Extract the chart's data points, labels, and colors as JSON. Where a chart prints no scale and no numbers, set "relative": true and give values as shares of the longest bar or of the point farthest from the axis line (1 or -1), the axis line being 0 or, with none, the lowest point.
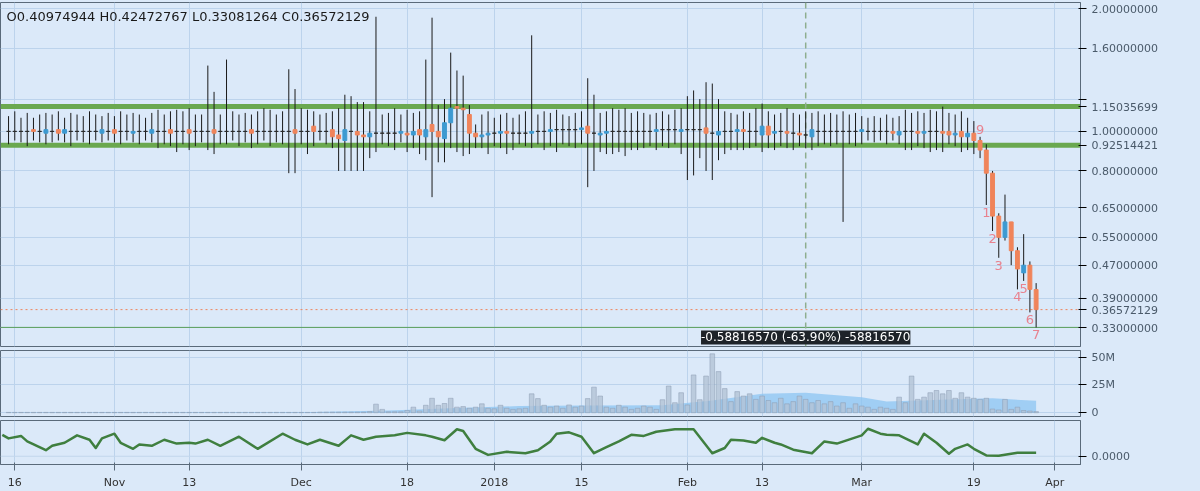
{
  "chart_data": [
    {
      "type": "candlestick",
      "annotations": [
        "O0.40974944 H0.42472767 L0.33081264 C0.36572129",
        {
          "text": "9",
          "x": "2018-03-20",
          "y": 0.97
        },
        {
          "text": "1",
          "x": "2018-03-21",
          "y": 0.66
        },
        {
          "text": "2",
          "x": "2018-03-22",
          "y": 0.57
        },
        {
          "text": "3",
          "x": "2018-03-23",
          "y": 0.49
        },
        {
          "text": "4",
          "x": "2018-03-26",
          "y": 0.41
        },
        {
          "text": "5",
          "x": "2018-03-27",
          "y": 0.43
        },
        {
          "text": "6",
          "x": "2018-03-28",
          "y": 0.36
        },
        {
          "text": "7",
          "x": "2018-03-29",
          "y": 0.33081264
        },
        {
          "text": "-0.58816570 (-63.90%) -58816570",
          "x": "2018-02-20",
          "y": 0.3308
        }
      ],
      "x": [
        "2017-10-15",
        "2017-10-16",
        "2017-10-17",
        "2017-10-18",
        "2017-10-19",
        "2017-10-20",
        "2017-10-21",
        "2017-10-22",
        "2017-10-23",
        "2017-10-24",
        "2017-10-25",
        "2017-10-26",
        "2017-10-27",
        "2017-10-28",
        "2017-10-29",
        "2017-10-30",
        "2017-10-31",
        "2017-11-01",
        "2017-11-02",
        "2017-11-03",
        "2017-11-04",
        "2017-11-05",
        "2017-11-06",
        "2017-11-07",
        "2017-11-08",
        "2017-11-09",
        "2017-11-10",
        "2017-11-11",
        "2017-11-12",
        "2017-11-13",
        "2017-11-14",
        "2017-11-15",
        "2017-11-16",
        "2017-11-17",
        "2017-11-18",
        "2017-11-19",
        "2017-11-20",
        "2017-11-21",
        "2017-11-22",
        "2017-11-23",
        "2017-11-24",
        "2017-11-25",
        "2017-11-26",
        "2017-11-27",
        "2017-11-28",
        "2017-11-29",
        "2017-11-30",
        "2017-12-01",
        "2017-12-02",
        "2017-12-03",
        "2017-12-04",
        "2017-12-05",
        "2017-12-06",
        "2017-12-07",
        "2017-12-08",
        "2017-12-09",
        "2017-12-10",
        "2017-12-11",
        "2017-12-12",
        "2017-12-13",
        "2017-12-14",
        "2017-12-15",
        "2017-12-16",
        "2017-12-17",
        "2017-12-18",
        "2017-12-19",
        "2017-12-20",
        "2017-12-21",
        "2017-12-22",
        "2017-12-23",
        "2017-12-24",
        "2017-12-25",
        "2017-12-26",
        "2017-12-27",
        "2017-12-28",
        "2017-12-29",
        "2017-12-30",
        "2017-12-31",
        "2018-01-01",
        "2018-01-02",
        "2018-01-03",
        "2018-01-04",
        "2018-01-05",
        "2018-01-06",
        "2018-01-07",
        "2018-01-08",
        "2018-01-09",
        "2018-01-10",
        "2018-01-11",
        "2018-01-12",
        "2018-01-13",
        "2018-01-14",
        "2018-01-15",
        "2018-01-16",
        "2018-01-17",
        "2018-01-18",
        "2018-01-19",
        "2018-01-20",
        "2018-01-21",
        "2018-01-22",
        "2018-01-23",
        "2018-01-24",
        "2018-01-25",
        "2018-01-26",
        "2018-01-27",
        "2018-01-28",
        "2018-01-29",
        "2018-01-30",
        "2018-01-31",
        "2018-02-01",
        "2018-02-02",
        "2018-02-03",
        "2018-02-04",
        "2018-02-05",
        "2018-02-06",
        "2018-02-07",
        "2018-02-08",
        "2018-02-09",
        "2018-02-10",
        "2018-02-11",
        "2018-02-12",
        "2018-02-13",
        "2018-02-14",
        "2018-02-15",
        "2018-02-16",
        "2018-02-17",
        "2018-02-18",
        "2018-02-19",
        "2018-02-20",
        "2018-02-21",
        "2018-02-22",
        "2018-02-23",
        "2018-02-24",
        "2018-02-25",
        "2018-02-26",
        "2018-02-27",
        "2018-02-28",
        "2018-03-01",
        "2018-03-02",
        "2018-03-03",
        "2018-03-04",
        "2018-03-05",
        "2018-03-06",
        "2018-03-07",
        "2018-03-08",
        "2018-03-09",
        "2018-03-10",
        "2018-03-11",
        "2018-03-12",
        "2018-03-13",
        "2018-03-14",
        "2018-03-15",
        "2018-03-16",
        "2018-03-17",
        "2018-03-18",
        "2018-03-19",
        "2018-03-20",
        "2018-03-21",
        "2018-03-22",
        "2018-03-23",
        "2018-03-24",
        "2018-03-25",
        "2018-03-26",
        "2018-03-27",
        "2018-03-28",
        "2018-03-29"
      ],
      "ohlc": [
        [
          1.0,
          1.09,
          0.93,
          1.0
        ],
        [
          1.0,
          1.12,
          0.95,
          1.0
        ],
        [
          1.0,
          1.08,
          0.94,
          1.0
        ],
        [
          1.0,
          1.11,
          0.92,
          1.0
        ],
        [
          1.01,
          1.08,
          0.95,
          1.0
        ],
        [
          1.0,
          1.1,
          0.94,
          1.0
        ],
        [
          0.99,
          1.11,
          0.93,
          1.01
        ],
        [
          1.0,
          1.1,
          0.94,
          1.0
        ],
        [
          1.01,
          1.12,
          0.95,
          0.99
        ],
        [
          0.99,
          1.08,
          0.94,
          1.01
        ],
        [
          1.0,
          1.11,
          0.92,
          1.0
        ],
        [
          1.0,
          1.1,
          0.95,
          1.0
        ],
        [
          1.0,
          1.09,
          0.94,
          1.0
        ],
        [
          1.0,
          1.12,
          0.93,
          1.0
        ],
        [
          1.0,
          1.1,
          0.95,
          1.0
        ],
        [
          0.99,
          1.09,
          0.94,
          1.01
        ],
        [
          1.0,
          1.11,
          0.95,
          1.0
        ],
        [
          1.01,
          1.09,
          0.94,
          0.99
        ],
        [
          1.0,
          1.12,
          0.93,
          1.0
        ],
        [
          1.0,
          1.1,
          0.95,
          1.0
        ],
        [
          0.99,
          1.11,
          0.94,
          1.0
        ],
        [
          1.0,
          1.1,
          0.93,
          1.0
        ],
        [
          1.0,
          1.08,
          0.95,
          1.0
        ],
        [
          0.99,
          1.11,
          0.94,
          1.01
        ],
        [
          1.0,
          1.13,
          0.91,
          1.0
        ],
        [
          1.0,
          1.1,
          0.93,
          1.0
        ],
        [
          1.01,
          1.12,
          0.92,
          0.99
        ],
        [
          1.0,
          1.13,
          0.89,
          1.0
        ],
        [
          1.0,
          1.12,
          0.93,
          1.0
        ],
        [
          1.01,
          1.14,
          0.9,
          0.99
        ],
        [
          1.0,
          1.1,
          0.92,
          1.0
        ],
        [
          1.0,
          1.1,
          0.94,
          1.0
        ],
        [
          1.0,
          1.45,
          0.9,
          1.0
        ],
        [
          1.01,
          1.25,
          0.88,
          0.99
        ],
        [
          1.0,
          1.1,
          0.93,
          1.0
        ],
        [
          1.0,
          1.5,
          0.93,
          1.0
        ],
        [
          1.0,
          1.12,
          0.95,
          1.0
        ],
        [
          1.0,
          1.1,
          0.92,
          1.0
        ],
        [
          1.0,
          1.11,
          0.94,
          1.0
        ],
        [
          1.01,
          1.1,
          0.91,
          0.99
        ],
        [
          1.0,
          1.12,
          0.93,
          1.0
        ],
        [
          1.0,
          1.14,
          0.95,
          1.0
        ],
        [
          1.0,
          1.13,
          0.92,
          1.0
        ],
        [
          1.0,
          1.1,
          0.94,
          1.0
        ],
        [
          1.0,
          1.12,
          0.93,
          1.0
        ],
        [
          1.0,
          1.42,
          0.79,
          1.0
        ],
        [
          1.01,
          1.27,
          0.79,
          0.99
        ],
        [
          1.0,
          1.14,
          0.93,
          1.0
        ],
        [
          1.0,
          1.13,
          0.88,
          1.0
        ],
        [
          1.03,
          1.12,
          0.92,
          1.0
        ],
        [
          1.0,
          1.1,
          0.95,
          1.0
        ],
        [
          1.0,
          1.11,
          0.93,
          1.0
        ],
        [
          1.01,
          1.12,
          0.91,
          0.97
        ],
        [
          0.98,
          1.14,
          0.8,
          0.96
        ],
        [
          0.95,
          1.23,
          0.8,
          1.01
        ],
        [
          1.0,
          1.22,
          0.8,
          1.0
        ],
        [
          1.0,
          1.18,
          0.8,
          0.98
        ],
        [
          0.98,
          1.18,
          0.8,
          0.97
        ],
        [
          0.97,
          1.12,
          0.86,
          0.99
        ],
        [
          0.99,
          1.91,
          0.89,
          0.99
        ],
        [
          0.99,
          1.1,
          0.93,
          0.99
        ],
        [
          0.99,
          1.11,
          0.92,
          0.99
        ],
        [
          0.99,
          1.14,
          0.9,
          0.99
        ],
        [
          0.99,
          1.1,
          0.94,
          1.0
        ],
        [
          0.99,
          1.13,
          0.89,
          0.98
        ],
        [
          0.98,
          1.11,
          0.91,
          1.0
        ],
        [
          1.01,
          1.12,
          0.88,
          0.98
        ],
        [
          0.97,
          1.5,
          0.85,
          1.01
        ],
        [
          1.04,
          1.9,
          0.69,
          1.0
        ],
        [
          1.0,
          1.16,
          0.84,
          0.97
        ],
        [
          0.96,
          1.2,
          0.84,
          1.05
        ],
        [
          1.05,
          1.56,
          0.91,
          1.14
        ],
        [
          1.15,
          1.41,
          0.89,
          1.14
        ],
        [
          1.14,
          1.37,
          0.87,
          1.13
        ],
        [
          1.1,
          1.16,
          0.88,
          0.99
        ],
        [
          0.99,
          1.04,
          0.91,
          0.97
        ],
        [
          0.97,
          1.1,
          0.91,
          0.98
        ],
        [
          0.98,
          1.12,
          0.88,
          0.99
        ],
        [
          0.99,
          1.08,
          0.92,
          0.99
        ],
        [
          0.99,
          1.1,
          0.91,
          1.0
        ],
        [
          1.0,
          1.11,
          0.88,
          0.99
        ],
        [
          0.99,
          1.08,
          0.9,
          0.99
        ],
        [
          0.99,
          1.1,
          0.93,
          0.99
        ],
        [
          0.99,
          1.12,
          0.92,
          0.99
        ],
        [
          0.99,
          1.72,
          0.91,
          1.0
        ],
        [
          1.0,
          1.1,
          0.93,
          1.0
        ],
        [
          1.0,
          1.12,
          0.9,
          1.0
        ],
        [
          1.0,
          1.11,
          0.92,
          1.01
        ],
        [
          1.01,
          1.13,
          0.89,
          1.01
        ],
        [
          1.01,
          1.1,
          0.93,
          1.01
        ],
        [
          1.01,
          1.09,
          0.92,
          1.01
        ],
        [
          1.01,
          1.11,
          0.91,
          1.01
        ],
        [
          1.01,
          1.12,
          0.93,
          1.02
        ],
        [
          1.03,
          1.35,
          0.73,
          0.99
        ],
        [
          0.99,
          1.23,
          0.8,
          0.99
        ],
        [
          0.98,
          1.11,
          0.89,
          0.99
        ],
        [
          0.99,
          1.12,
          0.88,
          1.0
        ],
        [
          1.0,
          1.14,
          0.88,
          1.0
        ],
        [
          1.0,
          1.13,
          0.89,
          1.0
        ],
        [
          1.0,
          1.14,
          0.87,
          1.0
        ],
        [
          1.0,
          1.11,
          0.9,
          1.0
        ],
        [
          1.0,
          1.12,
          0.9,
          1.0
        ],
        [
          1.0,
          1.11,
          0.91,
          1.0
        ],
        [
          1.0,
          1.1,
          0.92,
          1.0
        ],
        [
          1.0,
          1.11,
          0.9,
          1.01
        ],
        [
          1.01,
          1.12,
          0.92,
          1.01
        ],
        [
          1.01,
          1.1,
          0.91,
          1.01
        ],
        [
          1.01,
          1.13,
          0.93,
          1.01
        ],
        [
          1.0,
          1.14,
          0.88,
          1.01
        ],
        [
          1.01,
          1.22,
          0.76,
          1.01
        ],
        [
          1.01,
          1.26,
          0.78,
          1.01
        ],
        [
          1.01,
          1.2,
          0.86,
          1.01
        ],
        [
          1.02,
          1.32,
          0.8,
          0.99
        ],
        [
          0.99,
          1.31,
          0.76,
          0.99
        ],
        [
          0.98,
          1.2,
          0.85,
          1.0
        ],
        [
          1.0,
          1.12,
          0.88,
          1.0
        ],
        [
          1.0,
          1.11,
          0.9,
          1.0
        ],
        [
          1.0,
          1.1,
          0.9,
          1.01
        ],
        [
          1.01,
          1.12,
          0.9,
          1.0
        ],
        [
          1.0,
          1.11,
          0.91,
          1.0
        ],
        [
          1.0,
          1.14,
          0.92,
          1.0
        ],
        [
          0.98,
          1.17,
          0.89,
          1.03
        ],
        [
          1.03,
          1.12,
          0.91,
          0.98
        ],
        [
          0.99,
          1.1,
          0.9,
          1.0
        ],
        [
          1.0,
          1.11,
          0.92,
          1.0
        ],
        [
          1.0,
          1.14,
          0.91,
          0.99
        ],
        [
          0.99,
          1.11,
          0.9,
          0.99
        ],
        [
          0.99,
          1.1,
          0.92,
          0.98
        ],
        [
          0.98,
          1.12,
          0.91,
          0.98
        ],
        [
          0.97,
          1.11,
          0.9,
          1.01
        ],
        [
          1.0,
          1.12,
          0.92,
          1.0
        ],
        [
          1.0,
          1.1,
          0.93,
          1.0
        ],
        [
          1.0,
          1.11,
          0.92,
          1.0
        ],
        [
          1.0,
          1.1,
          0.93,
          1.0
        ],
        [
          1.0,
          1.12,
          0.6,
          1.0
        ],
        [
          1.0,
          1.1,
          0.93,
          1.0
        ],
        [
          1.0,
          1.11,
          0.92,
          1.0
        ],
        [
          1.0,
          1.09,
          0.93,
          1.01
        ],
        [
          1.0,
          1.08,
          0.95,
          1.0
        ],
        [
          1.0,
          1.09,
          0.94,
          1.0
        ],
        [
          1.0,
          1.08,
          0.95,
          1.0
        ],
        [
          1.0,
          1.1,
          0.93,
          1.0
        ],
        [
          1.0,
          1.08,
          0.95,
          0.99
        ],
        [
          0.98,
          1.09,
          0.93,
          1.0
        ],
        [
          1.0,
          1.13,
          0.9,
          1.0
        ],
        [
          1.0,
          1.11,
          0.9,
          1.0
        ],
        [
          1.0,
          1.12,
          0.92,
          0.99
        ],
        [
          0.99,
          1.11,
          0.91,
          1.0
        ],
        [
          1.0,
          1.13,
          0.89,
          1.0
        ],
        [
          1.0,
          1.12,
          0.9,
          1.0
        ],
        [
          1.0,
          1.15,
          0.89,
          0.99
        ],
        [
          1.0,
          1.11,
          0.93,
          0.98
        ],
        [
          0.98,
          1.1,
          0.92,
          0.99
        ],
        [
          1.0,
          1.12,
          0.89,
          0.97
        ],
        [
          0.97,
          1.08,
          0.9,
          0.99
        ],
        [
          0.99,
          1.06,
          0.88,
          0.95
        ],
        [
          0.95,
          0.97,
          0.86,
          0.9
        ],
        [
          0.9,
          0.93,
          0.66,
          0.79
        ],
        [
          0.79,
          0.8,
          0.57,
          0.62
        ],
        [
          0.62,
          0.63,
          0.49,
          0.55
        ],
        [
          0.55,
          0.7,
          0.54,
          0.6
        ],
        [
          0.6,
          0.6,
          0.47,
          0.51
        ],
        [
          0.51,
          0.52,
          0.41,
          0.46
        ],
        [
          0.45,
          0.56,
          0.43,
          0.47
        ],
        [
          0.47,
          0.48,
          0.36,
          0.41
        ],
        [
          0.40974944,
          0.42472767,
          0.33081264,
          0.36572129
        ]
      ],
      "colors": [
        "#2b2b2b",
        "#2b2b2b",
        "#2b2b2b",
        "#2b2b2b",
        "#f0845a",
        "#2b2b2b",
        "#3d9ad1",
        "#2b2b2b",
        "#f0845a",
        "#3d9ad1",
        "#2b2b2b",
        "#2b2b2b",
        "#2b2b2b",
        "#2b2b2b",
        "#2b2b2b",
        "#3d9ad1",
        "#2b2b2b",
        "#f0845a",
        "#2b2b2b",
        "#2b2b2b",
        "#3d9ad1",
        "#2b2b2b",
        "#2b2b2b",
        "#3d9ad1",
        "#2b2b2b",
        "#2b2b2b",
        "#f0845a",
        "#2b2b2b",
        "#2b2b2b",
        "#f0845a",
        "#2b2b2b",
        "#2b2b2b",
        "#2b2b2b",
        "#f0845a",
        "#2b2b2b",
        "#2b2b2b",
        "#2b2b2b",
        "#2b2b2b",
        "#2b2b2b",
        "#f0845a",
        "#2b2b2b",
        "#2b2b2b",
        "#2b2b2b",
        "#2b2b2b",
        "#2b2b2b",
        "#2b2b2b",
        "#f0845a",
        "#2b2b2b",
        "#2b2b2b",
        "#f0845a",
        "#2b2b2b",
        "#2b2b2b",
        "#f0845a",
        "#f0845a",
        "#3d9ad1",
        "#2b2b2b",
        "#f0845a",
        "#f0845a",
        "#3d9ad1",
        "#2b2b2b",
        "#2b2b2b",
        "#2b2b2b",
        "#2b2b2b",
        "#3d9ad1",
        "#f0845a",
        "#3d9ad1",
        "#f0845a",
        "#3d9ad1",
        "#f0845a",
        "#f0845a",
        "#3d9ad1",
        "#3d9ad1",
        "#f0845a",
        "#f0845a",
        "#f0845a",
        "#f0845a",
        "#3d9ad1",
        "#3d9ad1",
        "#2b2b2b",
        "#3d9ad1",
        "#f0845a",
        "#2b2b2b",
        "#2b2b2b",
        "#2b2b2b",
        "#3d9ad1",
        "#2b2b2b",
        "#2b2b2b",
        "#3d9ad1",
        "#2b2b2b",
        "#2b2b2b",
        "#2b2b2b",
        "#2b2b2b",
        "#3d9ad1",
        "#f0845a",
        "#2b2b2b",
        "#3d9ad1",
        "#3d9ad1",
        "#2b2b2b",
        "#2b2b2b",
        "#2b2b2b",
        "#2b2b2b",
        "#2b2b2b",
        "#2b2b2b",
        "#2b2b2b",
        "#3d9ad1",
        "#2b2b2b",
        "#2b2b2b",
        "#2b2b2b",
        "#3d9ad1",
        "#2b2b2b",
        "#2b2b2b",
        "#2b2b2b",
        "#f0845a",
        "#2b2b2b",
        "#3d9ad1",
        "#2b2b2b",
        "#2b2b2b",
        "#3d9ad1",
        "#f0845a",
        "#2b2b2b",
        "#2b2b2b",
        "#3d9ad1",
        "#f0845a",
        "#3d9ad1",
        "#2b2b2b",
        "#f0845a",
        "#2b2b2b",
        "#f0845a",
        "#2b2b2b",
        "#3d9ad1",
        "#2b2b2b",
        "#2b2b2b",
        "#2b2b2b",
        "#2b2b2b",
        "#2b2b2b",
        "#2b2b2b",
        "#2b2b2b",
        "#3d9ad1",
        "#2b2b2b",
        "#2b2b2b",
        "#2b2b2b",
        "#2b2b2b",
        "#f0845a",
        "#3d9ad1",
        "#2b2b2b",
        "#2b2b2b",
        "#f0845a",
        "#3d9ad1",
        "#2b2b2b",
        "#2b2b2b",
        "#f0845a",
        "#f0845a",
        "#3d9ad1",
        "#f0845a",
        "#3d9ad1",
        "#f0845a",
        "#f0845a",
        "#f0845a",
        "#f0845a",
        "#f0845a",
        "#3d9ad1",
        "#f0845a",
        "#f0845a",
        "#3d9ad1",
        "#f0845a",
        "#f0845a"
      ],
      "log": "y",
      "xlim": [
        "2017-10-13T17:00",
        "2018-04-05T03:00"
      ],
      "ylim": [
        0.297,
        2.07
      ],
      "yticks": [
        {
          "value": 0.33,
          "label": "0.33000000"
        },
        {
          "value": 0.39,
          "label": "0.39000000"
        },
        {
          "value": 0.47,
          "label": "0.47000000"
        },
        {
          "value": 0.55,
          "label": "0.55000000"
        },
        {
          "value": 0.65,
          "label": "0.65000000"
        },
        {
          "value": 0.8,
          "label": "0.80000000"
        },
        {
          "value": 1.0,
          "label": "1.00000000"
        },
        {
          "value": 1.2,
          "label": null
        },
        {
          "value": 1.6,
          "label": "1.60000000"
        },
        {
          "value": 2.0,
          "label": "2.00000000"
        }
      ],
      "xticks": [
        "2017-10-16",
        "2017-11-01",
        "2017-11-13",
        "2017-12-01",
        "2017-12-18",
        "2018-01-01",
        "2018-01-15",
        "2018-02-01",
        "2018-02-13",
        "2018-03-01",
        "2018-03-19",
        "2018-04-01"
      ],
      "tick_labels": "y",
      "grid": true,
      "ref_lines": [
        {
          "axis": "y",
          "value": 1.15035699,
          "label": "1.15035699",
          "color": "#6aa84f",
          "line_style": "solid"
        },
        {
          "axis": "y",
          "value": 0.92514421,
          "label": "0.92514421",
          "color": "#6aa84f",
          "line_style": "solid"
        },
        {
          "axis": "y",
          "value": 0.36572129,
          "label": "0.36572129",
          "color": "#f0845a",
          "line_style": "dotted"
        },
        {
          "axis": "y",
          "value": 0.3308,
          "label": null,
          "color": "#5a9e5a",
          "line_style": "solid"
        },
        {
          "axis": "x",
          "value": "2018-02-20",
          "label": null,
          "color": "#8fae8f",
          "line_style": "dashed"
        }
      ]
    },
    {
      "type": "bar",
      "x": [
        "2017-10-15",
        "2017-10-16",
        "2017-10-17",
        "2017-10-18",
        "2017-10-19",
        "2017-10-20",
        "2017-10-21",
        "2017-10-22",
        "2017-10-23",
        "2017-10-24",
        "2017-10-25",
        "2017-10-26",
        "2017-10-27",
        "2017-10-28",
        "2017-10-29",
        "2017-10-30",
        "2017-10-31",
        "2017-11-01",
        "2017-11-02",
        "2017-11-03",
        "2017-11-04",
        "2017-11-05",
        "2017-11-06",
        "2017-11-07",
        "2017-11-08",
        "2017-11-09",
        "2017-11-10",
        "2017-11-11",
        "2017-11-12",
        "2017-11-13",
        "2017-11-14",
        "2017-11-15",
        "2017-11-16",
        "2017-11-17",
        "2017-11-18",
        "2017-11-19",
        "2017-11-20",
        "2017-11-21",
        "2017-11-22",
        "2017-11-23",
        "2017-11-24",
        "2017-11-25",
        "2017-11-26",
        "2017-11-27",
        "2017-11-28",
        "2017-11-29",
        "2017-11-30",
        "2017-12-01",
        "2017-12-02",
        "2017-12-03",
        "2017-12-04",
        "2017-12-05",
        "2017-12-06",
        "2017-12-07",
        "2017-12-08",
        "2017-12-09",
        "2017-12-10",
        "2017-12-11",
        "2017-12-12",
        "2017-12-13",
        "2017-12-14",
        "2017-12-15",
        "2017-12-16",
        "2017-12-17",
        "2017-12-18",
        "2017-12-19",
        "2017-12-20",
        "2017-12-21",
        "2017-12-22",
        "2017-12-23",
        "2017-12-24",
        "2017-12-25",
        "2017-12-26",
        "2017-12-27",
        "2017-12-28",
        "2017-12-29",
        "2017-12-30",
        "2017-12-31",
        "2018-01-01",
        "2018-01-02",
        "2018-01-03",
        "2018-01-04",
        "2018-01-05",
        "2018-01-06",
        "2018-01-07",
        "2018-01-08",
        "2018-01-09",
        "2018-01-10",
        "2018-01-11",
        "2018-01-12",
        "2018-01-13",
        "2018-01-14",
        "2018-01-15",
        "2018-01-16",
        "2018-01-17",
        "2018-01-18",
        "2018-01-19",
        "2018-01-20",
        "2018-01-21",
        "2018-01-22",
        "2018-01-23",
        "2018-01-24",
        "2018-01-25",
        "2018-01-26",
        "2018-01-27",
        "2018-01-28",
        "2018-01-29",
        "2018-01-30",
        "2018-01-31",
        "2018-02-01",
        "2018-02-02",
        "2018-02-03",
        "2018-02-04",
        "2018-02-05",
        "2018-02-06",
        "2018-02-07",
        "2018-02-08",
        "2018-02-09",
        "2018-02-10",
        "2018-02-11",
        "2018-02-12",
        "2018-02-13",
        "2018-02-14",
        "2018-02-15",
        "2018-02-16",
        "2018-02-17",
        "2018-02-18",
        "2018-02-19",
        "2018-02-20",
        "2018-02-21",
        "2018-02-22",
        "2018-02-23",
        "2018-02-24",
        "2018-02-25",
        "2018-02-26",
        "2018-02-27",
        "2018-02-28",
        "2018-03-01",
        "2018-03-02",
        "2018-03-03",
        "2018-03-04",
        "2018-03-05",
        "2018-03-06",
        "2018-03-07",
        "2018-03-08",
        "2018-03-09",
        "2018-03-10",
        "2018-03-11",
        "2018-03-12",
        "2018-03-13",
        "2018-03-14",
        "2018-03-15",
        "2018-03-16",
        "2018-03-17",
        "2018-03-18",
        "2018-03-19",
        "2018-03-20",
        "2018-03-21",
        "2018-03-22",
        "2018-03-23",
        "2018-03-24",
        "2018-03-25",
        "2018-03-26",
        "2018-03-27",
        "2018-03-28",
        "2018-03-29"
      ],
      "series": [
        {
          "type": "area",
          "color": "#8cc4f2",
          "x": [
            "2017-10-15",
            "2017-12-01",
            "2017-12-15",
            "2017-12-25",
            "2018-01-05",
            "2018-01-15",
            "2018-01-28",
            "2018-02-05",
            "2018-02-13",
            "2018-02-20",
            "2018-03-01",
            "2018-03-05",
            "2018-03-15",
            "2018-03-22",
            "2018-03-29"
          ],
          "values": [
            0.2,
            0.5,
            2,
            4,
            6,
            6.5,
            6.7,
            11,
            17,
            18,
            14,
            10,
            12,
            13,
            10.7
          ]
        },
        {
          "type": "bar",
          "color": "#b3c3d6",
          "values": [
            0.3,
            0.3,
            0.3,
            0.3,
            0.3,
            0.3,
            0.3,
            0.3,
            0.3,
            0.3,
            0.3,
            0.3,
            0.3,
            0.3,
            0.3,
            0.3,
            0.3,
            0.3,
            0.3,
            0.3,
            0.3,
            0.3,
            0.3,
            0.3,
            0.3,
            0.3,
            0.3,
            0.3,
            0.3,
            0.3,
            0.3,
            0.3,
            0.3,
            0.3,
            0.3,
            0.3,
            0.3,
            0.3,
            0.3,
            0.3,
            0.3,
            0.3,
            0.3,
            0.3,
            0.3,
            0.3,
            0.3,
            0.3,
            0.3,
            0.3,
            0.5,
            0.5,
            0.5,
            0.5,
            0.5,
            0.5,
            0.5,
            0.5,
            1,
            7.7,
            3,
            0.8,
            0.8,
            0.8,
            2,
            5,
            1.5,
            6.7,
            13,
            6.7,
            8.3,
            13,
            5,
            5.5,
            4,
            5,
            8,
            4,
            3.5,
            6.7,
            4,
            3,
            3.5,
            4,
            17,
            12.7,
            6.7,
            5,
            6,
            4,
            7,
            5,
            6,
            12.7,
            23,
            15,
            5,
            4,
            6.7,
            5,
            3,
            4,
            6,
            5,
            3,
            11.7,
            24,
            9,
            18,
            7,
            34,
            11.7,
            33,
            53,
            37,
            21.7,
            10,
            19,
            15,
            17,
            12,
            15,
            11,
            9,
            13,
            8,
            10,
            15,
            12,
            9,
            11,
            8,
            10,
            6,
            9,
            4,
            8,
            6,
            5,
            3,
            5,
            4,
            3,
            14,
            9,
            33,
            12,
            14,
            18,
            20,
            17,
            20,
            13,
            18,
            14,
            13,
            12,
            13,
            3.3,
            2.5,
            12,
            3,
            5,
            2,
            1.5,
            1
          ]
        }
      ],
      "xlim": [
        "2017-10-13T17:00",
        "2018-04-05T03:00"
      ],
      "ylim": [
        -3.4,
        56
      ],
      "yticks": [
        0,
        {
          "value": 25,
          "label": "25M"
        },
        {
          "value": 50,
          "label": "50M"
        }
      ],
      "xticks": [
        "2017-10-16",
        "2017-11-01",
        "2017-11-13",
        "2017-12-01",
        "2017-12-18",
        "2018-01-01",
        "2018-01-15",
        "2018-02-01",
        "2018-02-13",
        "2018-03-01",
        "2018-03-19",
        "2018-04-01"
      ],
      "tick_labels": "y",
      "grid": true
    },
    {
      "type": "line",
      "relative": true,
      "series": [
        {
          "color": "#3f7f3f",
          "x": [
            "2017-10-14",
            "2017-10-15",
            "2017-10-17",
            "2017-10-18",
            "2017-10-21",
            "2017-10-22",
            "2017-10-24",
            "2017-10-26",
            "2017-10-28",
            "2017-10-29",
            "2017-10-30",
            "2017-11-01",
            "2017-11-02",
            "2017-11-04",
            "2017-11-05",
            "2017-11-07",
            "2017-11-09",
            "2017-11-11",
            "2017-11-13",
            "2017-11-14",
            "2017-11-16",
            "2017-11-18",
            "2017-11-21",
            "2017-11-24",
            "2017-11-28",
            "2017-11-30",
            "2017-12-02",
            "2017-12-04",
            "2017-12-07",
            "2017-12-09",
            "2017-12-11",
            "2017-12-13",
            "2017-12-16",
            "2017-12-18",
            "2017-12-21",
            "2017-12-22",
            "2017-12-24",
            "2017-12-26",
            "2017-12-27",
            "2017-12-29",
            "2017-12-31",
            "2018-01-03",
            "2018-01-06",
            "2018-01-08",
            "2018-01-10",
            "2018-01-11",
            "2018-01-13",
            "2018-01-15",
            "2018-01-17",
            "2018-01-19",
            "2018-01-21",
            "2018-01-23",
            "2018-01-25",
            "2018-01-27",
            "2018-01-30",
            "2018-02-02",
            "2018-02-05",
            "2018-02-07",
            "2018-02-08",
            "2018-02-10",
            "2018-02-12",
            "2018-02-13",
            "2018-02-15",
            "2018-02-16",
            "2018-02-18",
            "2018-02-21",
            "2018-02-23",
            "2018-02-25",
            "2018-03-01",
            "2018-03-02",
            "2018-03-04",
            "2018-03-05",
            "2018-03-07",
            "2018-03-10",
            "2018-03-11",
            "2018-03-13",
            "2018-03-15",
            "2018-03-16",
            "2018-03-18",
            "2018-03-19",
            "2018-03-21",
            "2018-03-23",
            "2018-03-26",
            "2018-03-29"
          ],
          "values": [
            0.78,
            0.65,
            0.74,
            0.54,
            0.22,
            0.38,
            0.49,
            0.76,
            0.6,
            0.3,
            0.65,
            0.82,
            0.49,
            0.27,
            0.43,
            0.38,
            0.6,
            0.46,
            0.49,
            0.46,
            0.6,
            0.38,
            0.71,
            0.27,
            0.82,
            0.6,
            0.43,
            0.6,
            0.38,
            0.76,
            0.6,
            0.71,
            0.76,
            0.85,
            0.76,
            0.71,
            0.58,
            0.98,
            0.92,
            0.27,
            0.05,
            0.16,
            0.11,
            0.22,
            0.54,
            0.82,
            0.87,
            0.71,
            0.11,
            0.33,
            0.54,
            0.78,
            0.74,
            0.89,
            0.98,
            0.98,
            0.11,
            0.3,
            0.6,
            0.57,
            0.49,
            0.67,
            0.49,
            0.43,
            0.24,
            0.11,
            0.54,
            0.46,
            0.76,
            1.0,
            0.82,
            0.78,
            0.76,
            0.43,
            0.82,
            0.49,
            0.09,
            0.27,
            0.43,
            0.27,
            0.03,
            0.02,
            0.13,
            0.13
          ]
        }
      ],
      "xlim": [
        "2017-10-13T17:00",
        "2018-04-05T03:00"
      ],
      "xticks": [
        {
          "value": "2017-10-16",
          "label": "16"
        },
        {
          "value": "2017-11-01",
          "label": "Nov"
        },
        {
          "value": "2017-11-13",
          "label": "13"
        },
        {
          "value": "2017-12-01",
          "label": "Dec"
        },
        {
          "value": "2017-12-18",
          "label": "18"
        },
        {
          "value": "2018-01-01",
          "label": "2018"
        },
        {
          "value": "2018-01-15",
          "label": "15"
        },
        {
          "value": "2018-02-01",
          "label": "Feb"
        },
        {
          "value": "2018-02-13",
          "label": "13"
        },
        {
          "value": "2018-03-01",
          "label": "Mar"
        },
        {
          "value": "2018-03-19",
          "label": "19"
        },
        {
          "value": "2018-04-01",
          "label": "Apr"
        }
      ],
      "tick_labels": "x",
      "grid": "x",
      "ref_lines": [
        {
          "axis": "y",
          "value": 0,
          "label": "0.0000",
          "color": "#c2d6ec"
        }
      ]
    }
  ]
}
